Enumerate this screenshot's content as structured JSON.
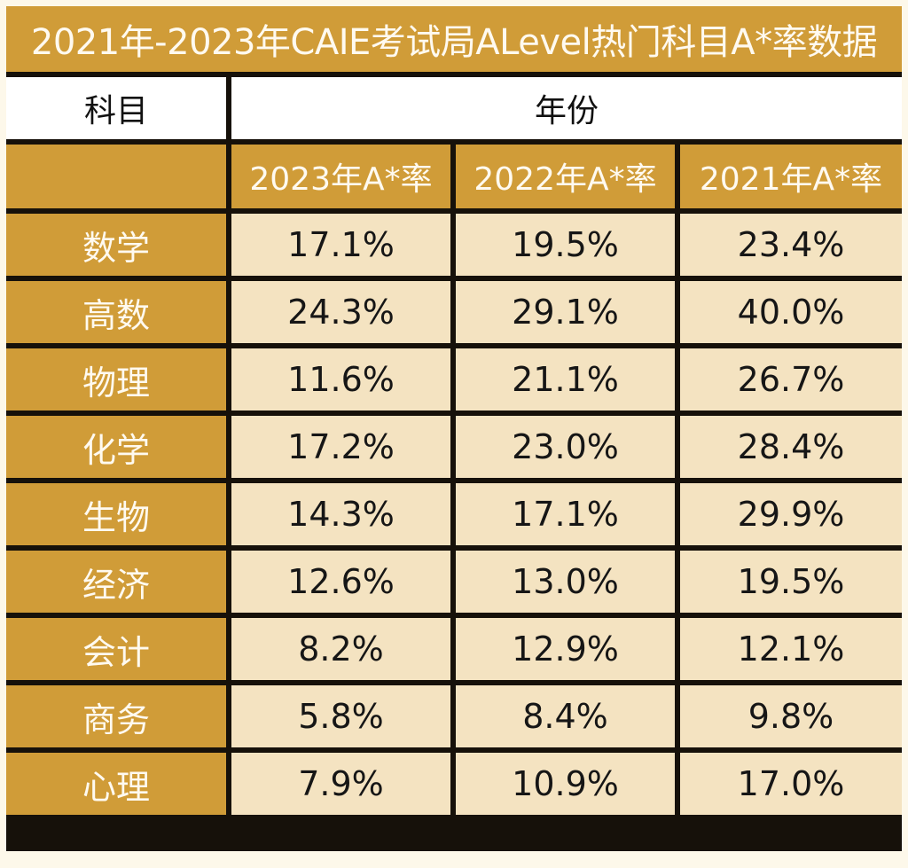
{
  "chart_data": {
    "type": "table",
    "title": "2021年-2023年CAIE考试局ALevel热门科目A*率数据",
    "header": {
      "subject": "科目",
      "year": "年份"
    },
    "columns": [
      "2023年A*率",
      "2022年A*率",
      "2021年A*率"
    ],
    "rows": [
      {
        "subject": "数学",
        "values": [
          "17.1%",
          "19.5%",
          "23.4%"
        ]
      },
      {
        "subject": "高数",
        "values": [
          "24.3%",
          "29.1%",
          "40.0%"
        ]
      },
      {
        "subject": "物理",
        "values": [
          "11.6%",
          "21.1%",
          "26.7%"
        ]
      },
      {
        "subject": "化学",
        "values": [
          "17.2%",
          "23.0%",
          "28.4%"
        ]
      },
      {
        "subject": "生物",
        "values": [
          "14.3%",
          "17.1%",
          "29.9%"
        ]
      },
      {
        "subject": "经济",
        "values": [
          "12.6%",
          "13.0%",
          "19.5%"
        ]
      },
      {
        "subject": "会计",
        "values": [
          "8.2%",
          "12.9%",
          "12.1%"
        ]
      },
      {
        "subject": "商务",
        "values": [
          "5.8%",
          "8.4%",
          "9.8%"
        ]
      },
      {
        "subject": "心理",
        "values": [
          "7.9%",
          "10.9%",
          "17.0%"
        ]
      }
    ]
  },
  "colors": {
    "gold": "#d09c38",
    "cream": "#f4e3c1",
    "border": "#16110a",
    "white": "#ffffff"
  }
}
